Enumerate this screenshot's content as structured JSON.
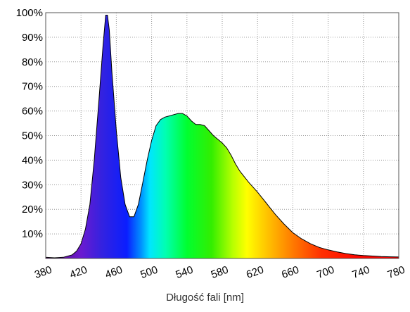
{
  "chart_data": {
    "type": "area",
    "title": "",
    "xlabel": "Długość fali [nm]",
    "ylabel": "",
    "xlim": [
      380,
      780
    ],
    "ylim": [
      0,
      100
    ],
    "x_ticks": [
      380,
      420,
      460,
      500,
      540,
      580,
      620,
      660,
      700,
      740,
      780
    ],
    "y_ticks": [
      10,
      20,
      30,
      40,
      50,
      60,
      70,
      80,
      90,
      100
    ],
    "y_tick_labels": [
      "10%",
      "20%",
      "30%",
      "40%",
      "50%",
      "60%",
      "70%",
      "80%",
      "90%",
      "100%"
    ],
    "grid": true,
    "fill": "visible-spectrum gradient",
    "series": [
      {
        "x": [
          380,
          390,
          400,
          410,
          415,
          420,
          425,
          430,
          435,
          440,
          445,
          448,
          450,
          452,
          455,
          460,
          465,
          470,
          475,
          480,
          485,
          490,
          495,
          500,
          505,
          510,
          515,
          520,
          525,
          530,
          535,
          540,
          545,
          550,
          555,
          560,
          565,
          570,
          575,
          580,
          585,
          590,
          595,
          600,
          610,
          620,
          630,
          640,
          650,
          660,
          670,
          680,
          690,
          700,
          710,
          720,
          730,
          740,
          750,
          760,
          770,
          780
        ],
        "y": [
          0.5,
          0.3,
          0.5,
          1.5,
          3,
          6,
          12,
          22,
          40,
          63,
          87,
          99,
          99,
          93,
          76,
          52,
          33,
          22,
          17,
          17,
          22,
          31,
          40,
          48,
          54,
          56.5,
          57.5,
          58,
          58.5,
          59,
          59,
          58,
          56,
          54.5,
          54.5,
          54,
          52,
          50,
          48.5,
          47,
          45,
          42,
          38.5,
          35.5,
          31,
          27,
          22.5,
          18,
          14,
          10.5,
          8,
          6,
          4.5,
          3.5,
          2.7,
          2,
          1.5,
          1.2,
          1,
          0.8,
          0.7,
          0.6
        ]
      }
    ]
  }
}
